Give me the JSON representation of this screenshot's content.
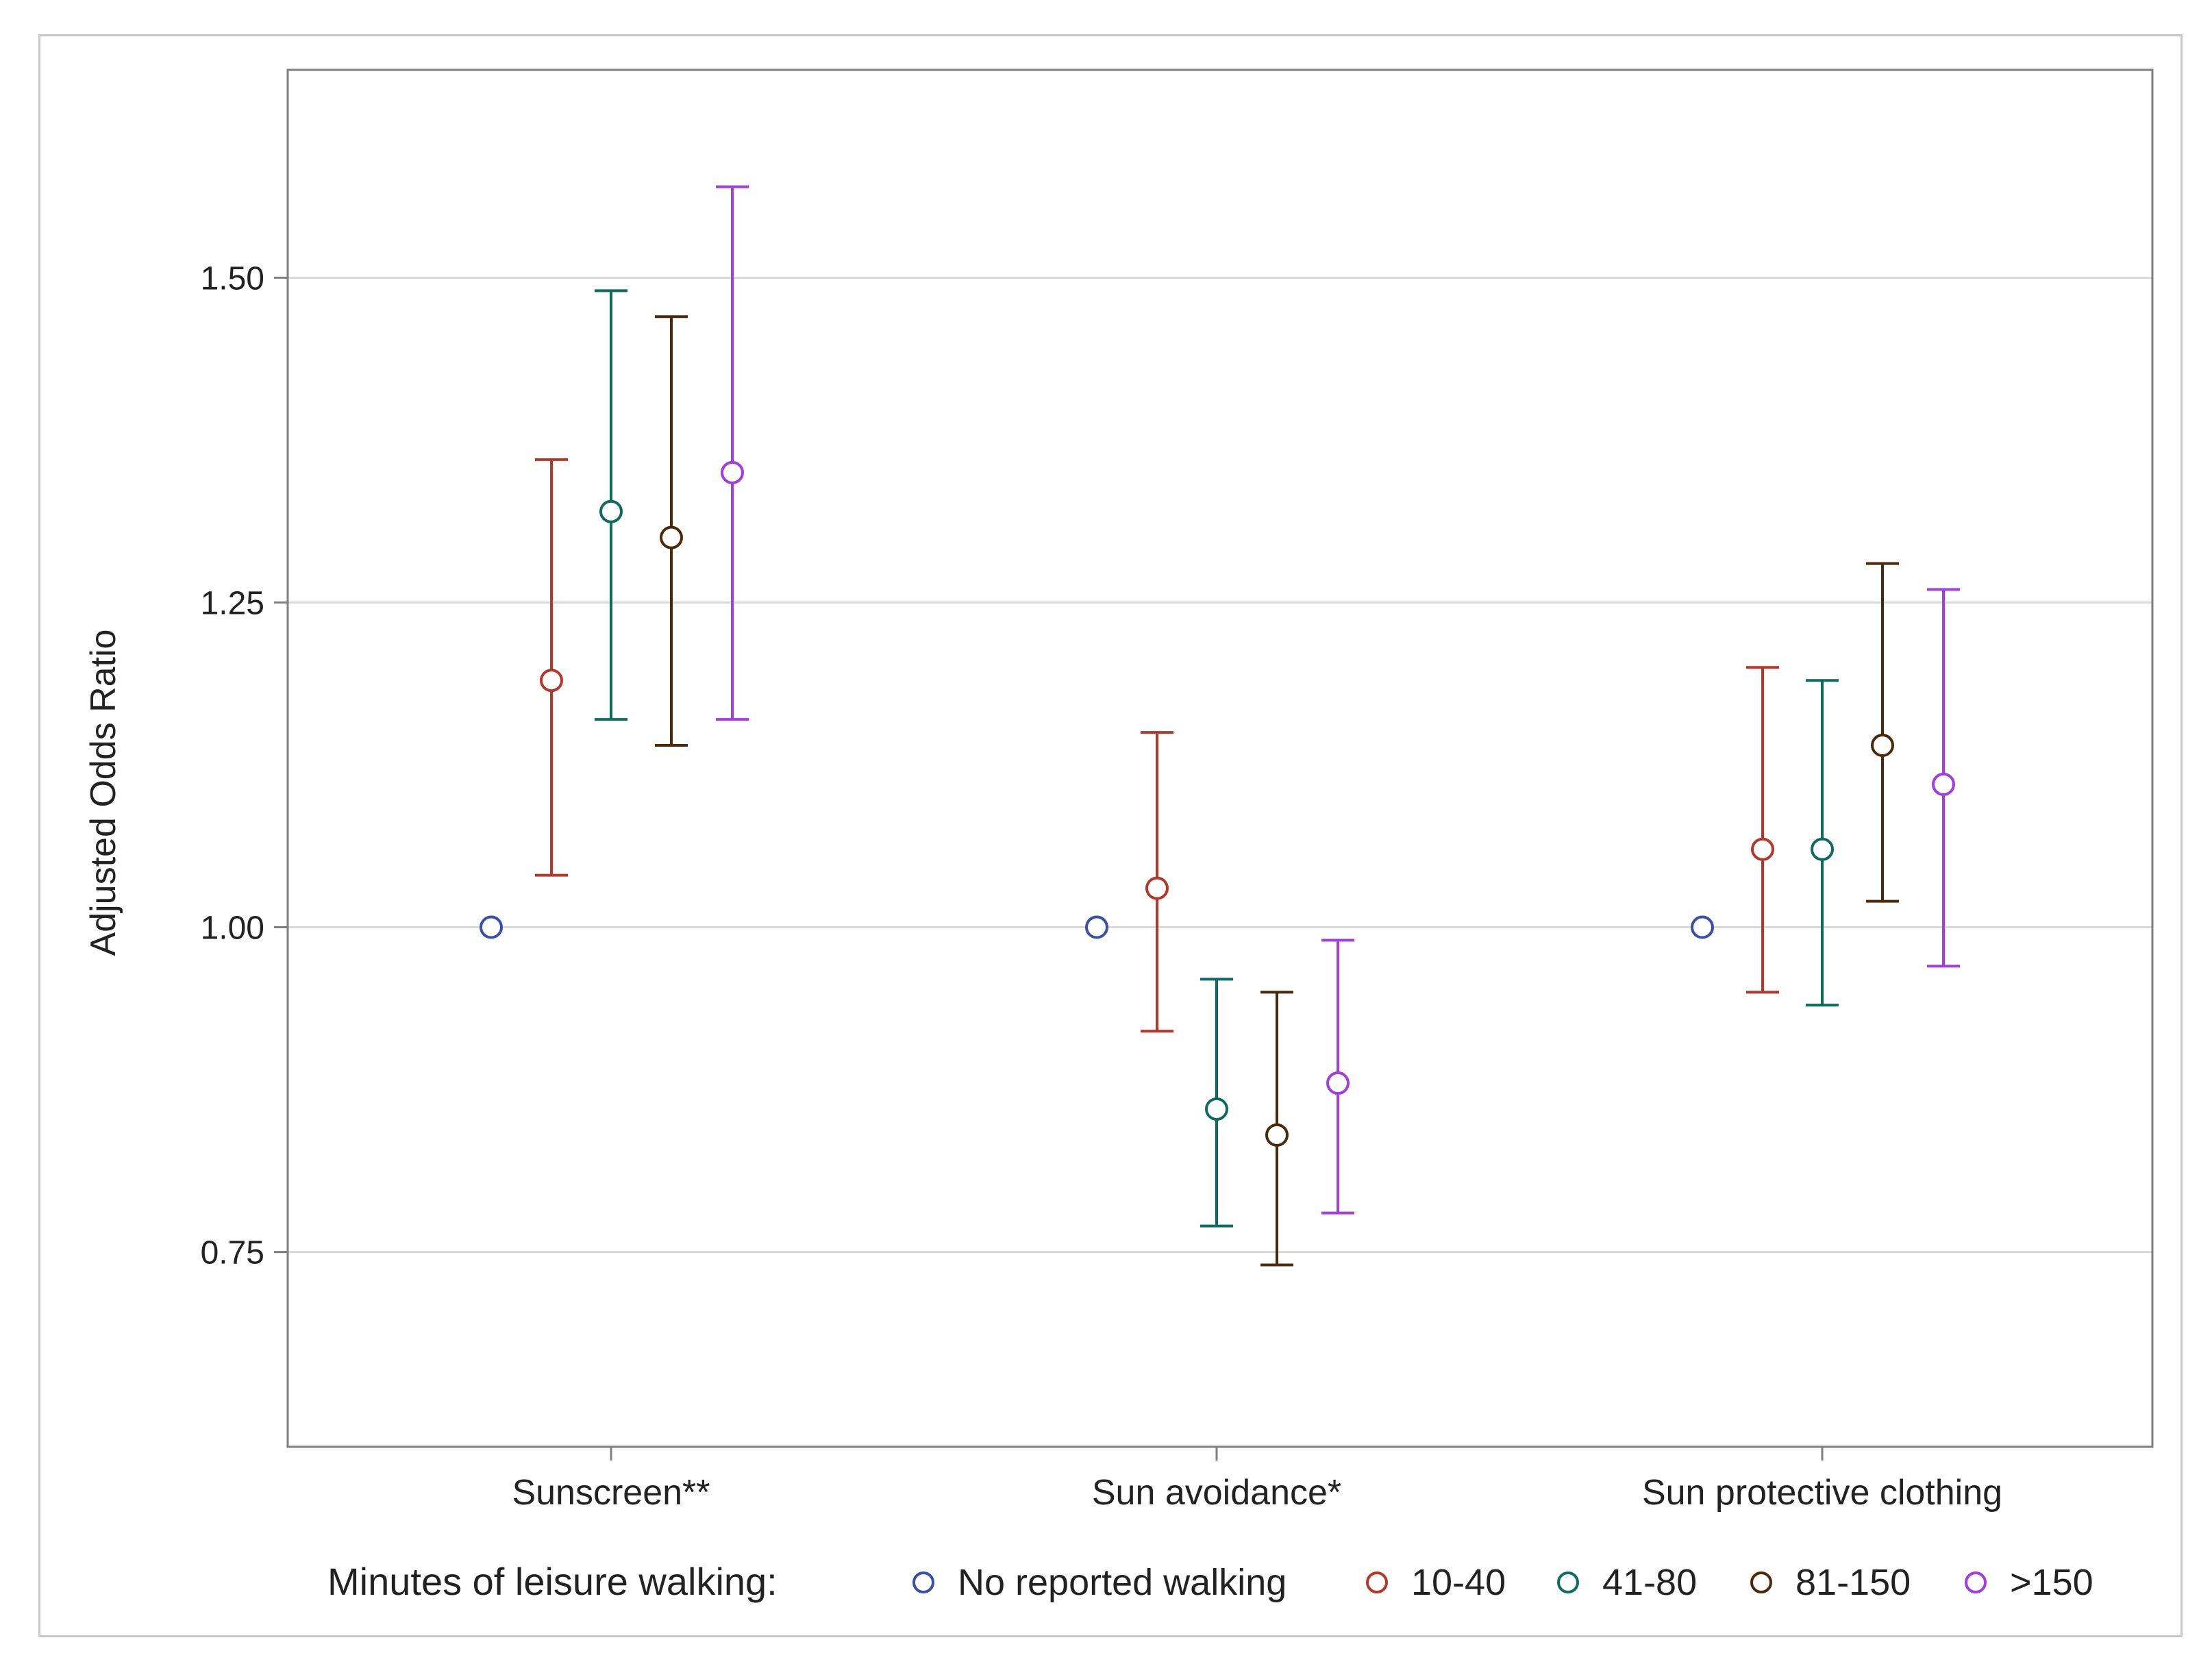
{
  "chart_data": {
    "type": "scatter",
    "subtype": "point-with-error-bars",
    "title": "",
    "xlabel": "",
    "ylabel": "Adjusted Odds Ratio",
    "ylim": [
      0.6,
      1.66
    ],
    "yticks": [
      0.75,
      1.0,
      1.25,
      1.5
    ],
    "ytick_labels": [
      "0.75",
      "1.00",
      "1.25",
      "1.50"
    ],
    "grid": "horizontal",
    "categories": [
      "Sunscreen**",
      "Sun avoidance*",
      "Sun protective clothing"
    ],
    "legend": {
      "title": "Minutes of leisure walking:",
      "position": "bottom"
    },
    "series": [
      {
        "name": "No reported walking",
        "color": "#3a4fa8",
        "estimates": [
          1.0,
          1.0,
          1.0
        ],
        "lower": [
          1.0,
          1.0,
          1.0
        ],
        "upper": [
          1.0,
          1.0,
          1.0
        ]
      },
      {
        "name": "10-40",
        "color": "#b5372a",
        "estimates": [
          1.19,
          1.03,
          1.06
        ],
        "lower": [
          1.04,
          0.92,
          0.95
        ],
        "upper": [
          1.36,
          1.15,
          1.2
        ]
      },
      {
        "name": "41-80",
        "color": "#0f6b5e",
        "estimates": [
          1.32,
          0.86,
          1.06
        ],
        "lower": [
          1.16,
          0.77,
          0.94
        ],
        "upper": [
          1.49,
          0.96,
          1.19
        ]
      },
      {
        "name": "81-150",
        "color": "#4a2a0c",
        "estimates": [
          1.3,
          0.84,
          1.14
        ],
        "lower": [
          1.14,
          0.74,
          1.02
        ],
        "upper": [
          1.47,
          0.95,
          1.28
        ]
      },
      {
        "name": ">150",
        "color": "#a23ddf",
        "estimates": [
          1.35,
          0.88,
          1.11
        ],
        "lower": [
          1.16,
          0.78,
          0.97
        ],
        "upper": [
          1.57,
          0.99,
          1.26
        ]
      }
    ]
  }
}
